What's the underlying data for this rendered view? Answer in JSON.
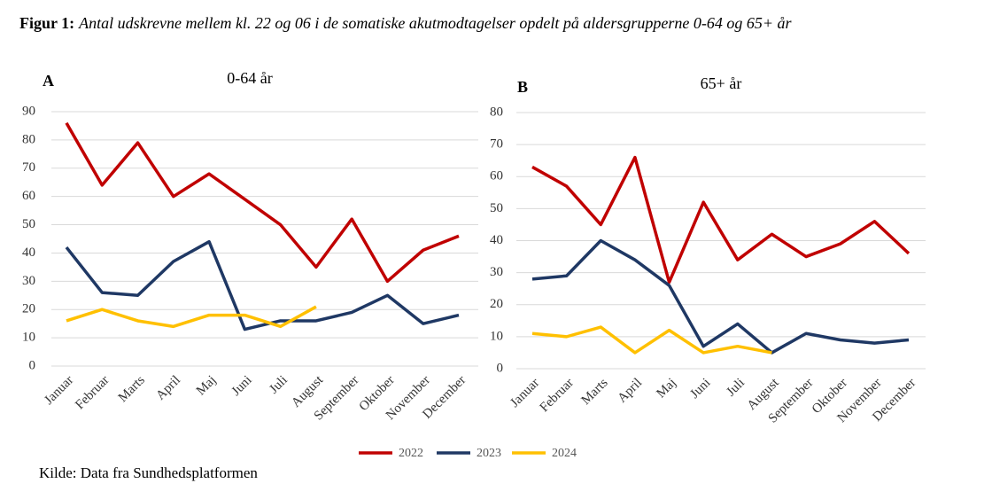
{
  "figure_label": "Figur 1:",
  "title": "Antal udskrevne mellem kl. 22 og 06 i de somatiske akutmodtagelser opdelt på aldersgrupperne 0-64 og 65+ år",
  "source": "Kilde: Data fra Sundhedsplatformen",
  "legend": {
    "names": [
      "2022",
      "2023",
      "2024"
    ],
    "colors": [
      "#c00000",
      "#1f3864",
      "#ffc000"
    ]
  },
  "chart_data": [
    {
      "type": "line",
      "panel": "A",
      "title": "0-64 år",
      "categories": [
        "Januar",
        "Februar",
        "Marts",
        "April",
        "Maj",
        "Juni",
        "Juli",
        "August",
        "September",
        "Oktober",
        "November",
        "December"
      ],
      "series": [
        {
          "values": [
            86,
            64,
            79,
            60,
            68,
            59,
            50,
            35,
            52,
            30,
            41,
            46
          ]
        },
        {
          "values": [
            42,
            26,
            25,
            37,
            44,
            13,
            16,
            16,
            19,
            25,
            15,
            18
          ]
        },
        {
          "values": [
            16,
            20,
            16,
            14,
            18,
            18,
            14,
            21,
            null,
            null,
            null,
            null
          ]
        }
      ],
      "ylim": [
        0,
        90
      ],
      "yticks": [
        0,
        10,
        20,
        30,
        40,
        50,
        60,
        70,
        80,
        90
      ],
      "grid": true
    },
    {
      "type": "line",
      "panel": "B",
      "title": "65+ år",
      "categories": [
        "Januar",
        "Februar",
        "Marts",
        "April",
        "Maj",
        "Juni",
        "Juli",
        "August",
        "September",
        "Oktober",
        "November",
        "December"
      ],
      "series": [
        {
          "values": [
            63,
            57,
            45,
            66,
            27,
            52,
            34,
            42,
            35,
            39,
            46,
            36
          ]
        },
        {
          "values": [
            28,
            29,
            40,
            34,
            26,
            7,
            14,
            5,
            11,
            9,
            8,
            9
          ]
        },
        {
          "values": [
            11,
            10,
            13,
            5,
            12,
            5,
            7,
            5,
            null,
            null,
            null,
            null
          ]
        }
      ],
      "ylim": [
        0,
        80
      ],
      "yticks": [
        0,
        10,
        20,
        30,
        40,
        50,
        60,
        70,
        80
      ],
      "grid": true
    }
  ]
}
